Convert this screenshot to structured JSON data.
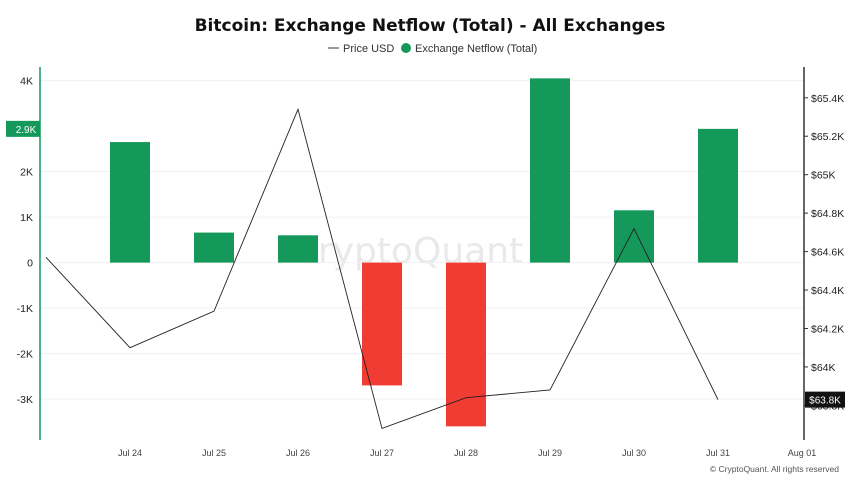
{
  "header": {
    "title": "Bitcoin: Exchange Netflow (Total) - All Exchanges"
  },
  "legend": {
    "price_label": "Price USD",
    "netflow_label": "Exchange Netflow (Total)"
  },
  "watermark": "CryptoQuant",
  "copyright": "© CryptoQuant. All rights reserved",
  "colors": {
    "positive": "#14995b",
    "negative": "#f03c32",
    "price_line": "#222222",
    "left_axis": "#14995b",
    "right_axis": "#333333",
    "grid": "#f1f1f1"
  },
  "badges": {
    "left_value": "2.9K",
    "right_value": "$63.8K"
  },
  "chart_data": {
    "type": "bar",
    "title": "Bitcoin: Exchange Netflow (Total) - All Exchanges",
    "x": [
      "Jul 24",
      "Jul 25",
      "Jul 26",
      "Jul 27",
      "Jul 28",
      "Jul 29",
      "Jul 30",
      "Jul 31",
      "Aug 01"
    ],
    "series": [
      {
        "name": "Exchange Netflow (Total)",
        "type": "bar",
        "axis": "left",
        "x": [
          "Jul 24",
          "Jul 25",
          "Jul 26",
          "Jul 27",
          "Jul 28",
          "Jul 29",
          "Jul 30",
          "Jul 31"
        ],
        "values": [
          2650,
          660,
          600,
          -2700,
          -3600,
          4050,
          1150,
          2940
        ]
      },
      {
        "name": "Price USD",
        "type": "line",
        "axis": "right",
        "x": [
          "Jul 23",
          "Jul 24",
          "Jul 25",
          "Jul 26",
          "Jul 27",
          "Jul 28",
          "Jul 29",
          "Jul 30",
          "Jul 31"
        ],
        "values": [
          64570,
          64100,
          64290,
          65340,
          63680,
          63840,
          63880,
          64720,
          63830
        ]
      }
    ],
    "y_left": {
      "ticks": [
        4000,
        2000,
        1000,
        0,
        -1000,
        -2000,
        -3000
      ],
      "tick_labels": [
        "4K",
        "2K",
        "1K",
        "0",
        "-1K",
        "-2K",
        "-3K"
      ],
      "range": [
        -3900,
        4300
      ]
    },
    "y_right": {
      "ticks": [
        65400,
        65200,
        65000,
        64800,
        64600,
        64400,
        64200,
        64000,
        63800
      ],
      "tick_labels": [
        "$65.4K",
        "$65.2K",
        "$65K",
        "$64.8K",
        "$64.6K",
        "$64.4K",
        "$64.2K",
        "$64K",
        "$63.8K"
      ],
      "range": [
        63620,
        65560
      ]
    },
    "grid": true,
    "legend_position": "top-center"
  }
}
